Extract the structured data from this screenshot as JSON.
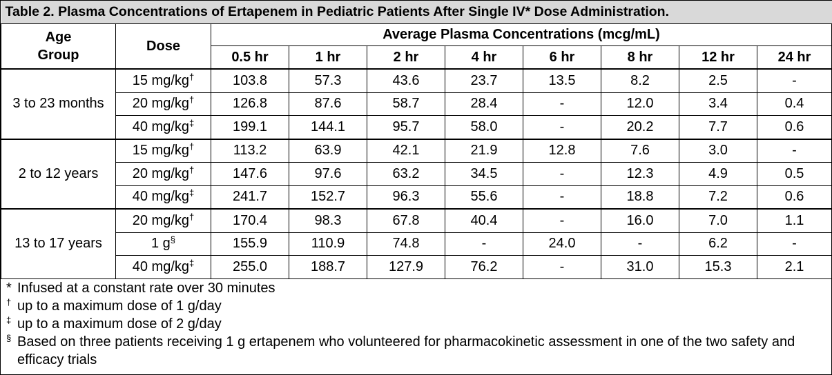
{
  "title": "Table 2. Plasma Concentrations of Ertapenem in Pediatric Patients After Single IV* Dose Administration.",
  "headers": {
    "age_group": "Age Group",
    "dose": "Dose",
    "span": "Average Plasma Concentrations (mcg/mL)",
    "times": [
      "0.5 hr",
      "1 hr",
      "2 hr",
      "4 hr",
      "6 hr",
      "8 hr",
      "12 hr",
      "24 hr"
    ]
  },
  "groups": [
    {
      "age": "3 to 23 months",
      "rows": [
        {
          "dose": "15 mg/kg",
          "mark": "†",
          "values": [
            "103.8",
            "57.3",
            "43.6",
            "23.7",
            "13.5",
            "8.2",
            "2.5",
            "-"
          ]
        },
        {
          "dose": "20 mg/kg",
          "mark": "†",
          "values": [
            "126.8",
            "87.6",
            "58.7",
            "28.4",
            "-",
            "12.0",
            "3.4",
            "0.4"
          ]
        },
        {
          "dose": "40 mg/kg",
          "mark": "‡",
          "values": [
            "199.1",
            "144.1",
            "95.7",
            "58.0",
            "-",
            "20.2",
            "7.7",
            "0.6"
          ]
        }
      ]
    },
    {
      "age": "2 to 12 years",
      "rows": [
        {
          "dose": "15 mg/kg",
          "mark": "†",
          "values": [
            "113.2",
            "63.9",
            "42.1",
            "21.9",
            "12.8",
            "7.6",
            "3.0",
            "-"
          ]
        },
        {
          "dose": "20 mg/kg",
          "mark": "†",
          "values": [
            "147.6",
            "97.6",
            "63.2",
            "34.5",
            "-",
            "12.3",
            "4.9",
            "0.5"
          ]
        },
        {
          "dose": "40 mg/kg",
          "mark": "‡",
          "values": [
            "241.7",
            "152.7",
            "96.3",
            "55.6",
            "-",
            "18.8",
            "7.2",
            "0.6"
          ]
        }
      ]
    },
    {
      "age": "13 to 17 years",
      "rows": [
        {
          "dose": "20 mg/kg",
          "mark": "†",
          "values": [
            "170.4",
            "98.3",
            "67.8",
            "40.4",
            "-",
            "16.0",
            "7.0",
            "1.1"
          ]
        },
        {
          "dose": "1 g",
          "mark": "§",
          "values": [
            "155.9",
            "110.9",
            "74.8",
            "-",
            "24.0",
            "-",
            "6.2",
            "-"
          ]
        },
        {
          "dose": "40 mg/kg",
          "mark": "‡",
          "values": [
            "255.0",
            "188.7",
            "127.9",
            "76.2",
            "-",
            "31.0",
            "15.3",
            "2.1"
          ]
        }
      ]
    }
  ],
  "footnotes": [
    {
      "mark": "*",
      "text": "Infused at a constant rate over 30 minutes"
    },
    {
      "mark": "†",
      "text": "up to a maximum dose of 1 g/day"
    },
    {
      "mark": "‡",
      "text": "up to a maximum dose of 2 g/day"
    },
    {
      "mark": "§",
      "text": "Based on three patients receiving 1 g ertapenem who volunteered for pharmacokinetic assessment in one of the two safety and efficacy trials"
    }
  ]
}
